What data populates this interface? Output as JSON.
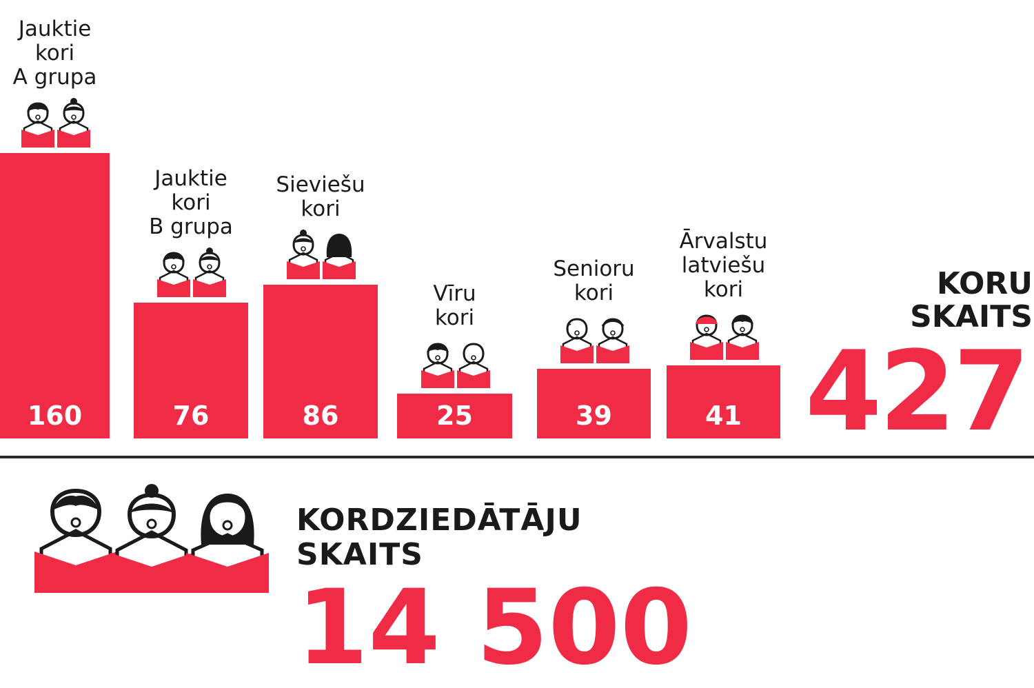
{
  "chart_data": {
    "type": "bar",
    "categories": [
      "Jauktie\nkori\nA grupa",
      "Jauktie\nkori\nB grupa",
      "Sieviešu\nkori",
      "Vīru\nkori",
      "Senioru\nkori",
      "Ārvalstu\nlatviešu\nkori"
    ],
    "values": [
      160,
      76,
      86,
      25,
      39,
      41
    ],
    "value_labels": [
      "160",
      "76",
      "86",
      "25",
      "39",
      "41"
    ],
    "bar_color": "#ef2b45",
    "icon_sets": [
      [
        "man-singer-icon",
        "woman-bun-singer-icon"
      ],
      [
        "man-singer-icon",
        "woman-bun-singer-icon"
      ],
      [
        "woman-bun-singer-icon",
        "woman-long-hair-singer-icon"
      ],
      [
        "man-singer-icon",
        "bald-man-singer-icon"
      ],
      [
        "senior-man-singer-icon",
        "senior-woman-singer-icon"
      ],
      [
        "red-cap-singer-icon",
        "man-singer-icon"
      ]
    ],
    "ylim": [
      0,
      160
    ],
    "grid": false,
    "legend": "none"
  },
  "totals": {
    "choirs_label": "KORU\nSKAITS",
    "choirs_value": "427",
    "singers_label": "KORDZIEDĀTĀJU\nSKAITS",
    "singers_value": "14 500"
  },
  "colors": {
    "accent": "#ef2b45",
    "text": "#1a1a1a"
  }
}
